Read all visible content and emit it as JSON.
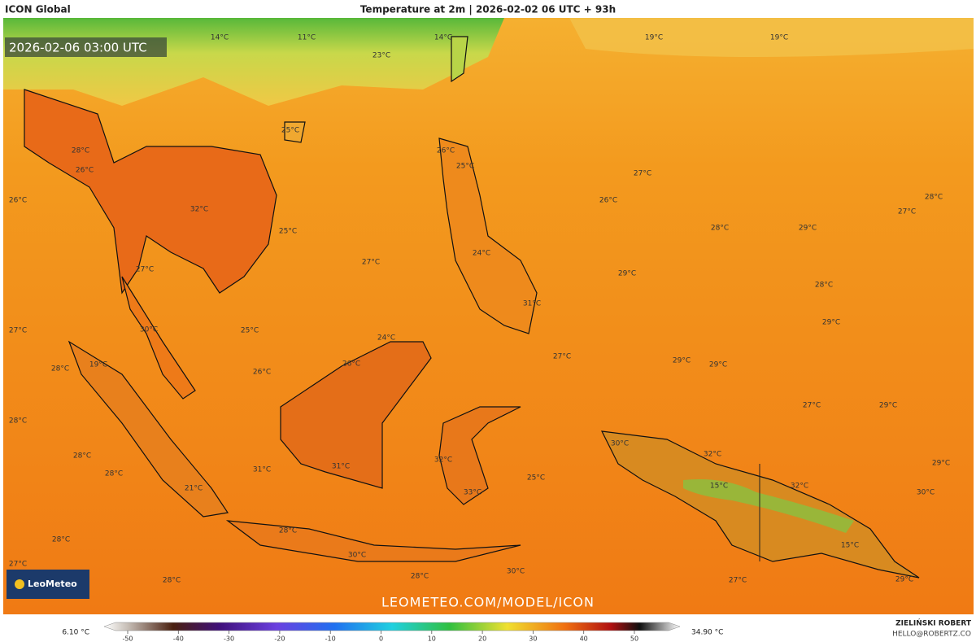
{
  "header": {
    "title": "ICON Global",
    "subtitle": "Temperature at 2m | 2026-02-02 06 UTC + 93h"
  },
  "timestamp": "2026-02-06 03:00 UTC",
  "map_labels": [
    "14°C",
    "11°C",
    "14°C",
    "19°C",
    "19°C",
    "23°C",
    "25°C",
    "28°C",
    "26°C",
    "26°C",
    "25°C",
    "27°C",
    "26°C",
    "26°C",
    "28°C",
    "32°C",
    "27°C",
    "28°C",
    "29°C",
    "25°C",
    "24°C",
    "27°C",
    "29°C",
    "27°C",
    "28°C",
    "31°C",
    "30°C",
    "29°C",
    "27°C",
    "25°C",
    "24°C",
    "27°C",
    "29°C",
    "29°C",
    "19°C",
    "28°C",
    "26°C",
    "26°C",
    "27°C",
    "29°C",
    "28°C",
    "30°C",
    "32°C",
    "28°C",
    "32°C",
    "29°C",
    "31°C",
    "31°C",
    "28°C",
    "25°C",
    "15°C",
    "32°C",
    "21°C",
    "33°C",
    "30°C",
    "28°C",
    "15°C",
    "28°C",
    "30°C",
    "27°C",
    "28°C",
    "28°C",
    "30°C",
    "27°C",
    "29°C"
  ],
  "logo": "LeoMeteo",
  "watermark": "LEOMETEO.COM/MODEL/ICON",
  "colorbar": {
    "min_label": "6.10 °C",
    "max_label": "34.90 °C",
    "ticks": [
      -50,
      -40,
      -30,
      -20,
      -10,
      0,
      10,
      20,
      30,
      40,
      50
    ]
  },
  "author": {
    "name": "ZIELIŃSKI ROBERT",
    "email": "HELLO@ROBERTZ.CO"
  }
}
